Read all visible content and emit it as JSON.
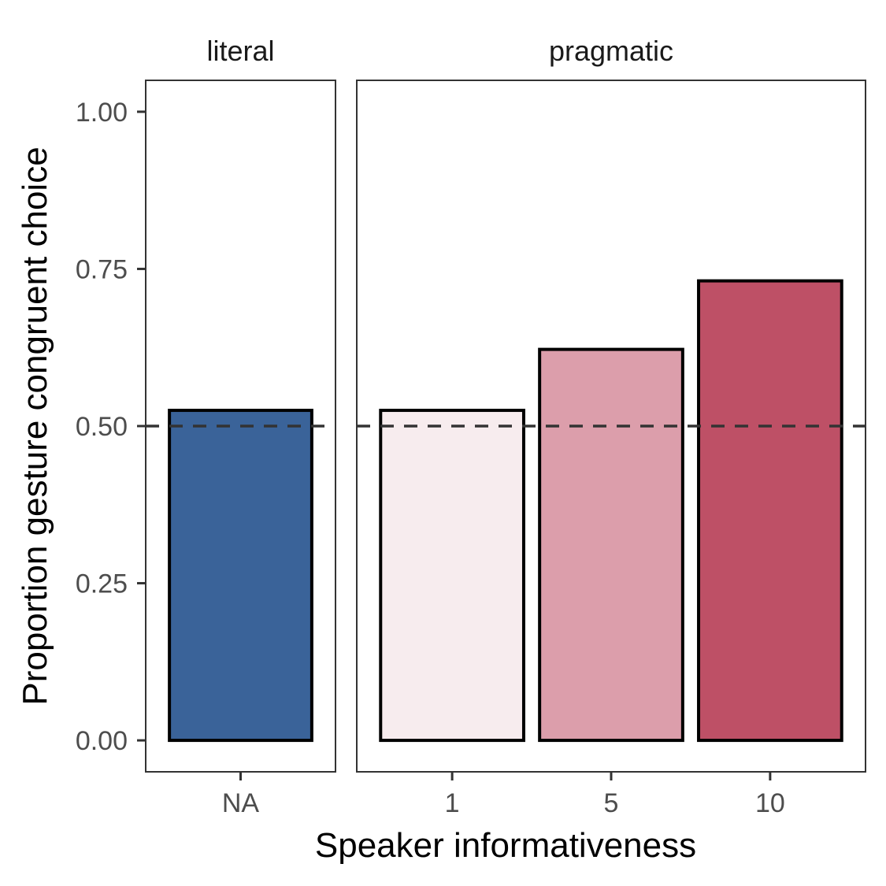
{
  "chart_data": {
    "type": "bar",
    "xlabel": "Speaker informativeness",
    "ylabel": "Proportion gesture congruent choice",
    "ylim": [
      -0.05,
      1.05
    ],
    "yticks": [
      0.0,
      0.25,
      0.5,
      0.75,
      1.0
    ],
    "ytick_labels": [
      "0.00",
      "0.25",
      "0.50",
      "0.75",
      "1.00"
    ],
    "reference_line": {
      "y": 0.5,
      "style": "dashed",
      "color": "#333333"
    },
    "grid": false,
    "facets": [
      {
        "label": "literal",
        "categories": [
          "NA"
        ],
        "values": [
          0.525
        ],
        "colors": [
          "#3a6399"
        ]
      },
      {
        "label": "pragmatic",
        "categories": [
          "1",
          "5",
          "10"
        ],
        "values": [
          0.525,
          0.622,
          0.731
        ],
        "colors": [
          "#f7ecee",
          "#dc9eab",
          "#be5066"
        ]
      }
    ]
  }
}
